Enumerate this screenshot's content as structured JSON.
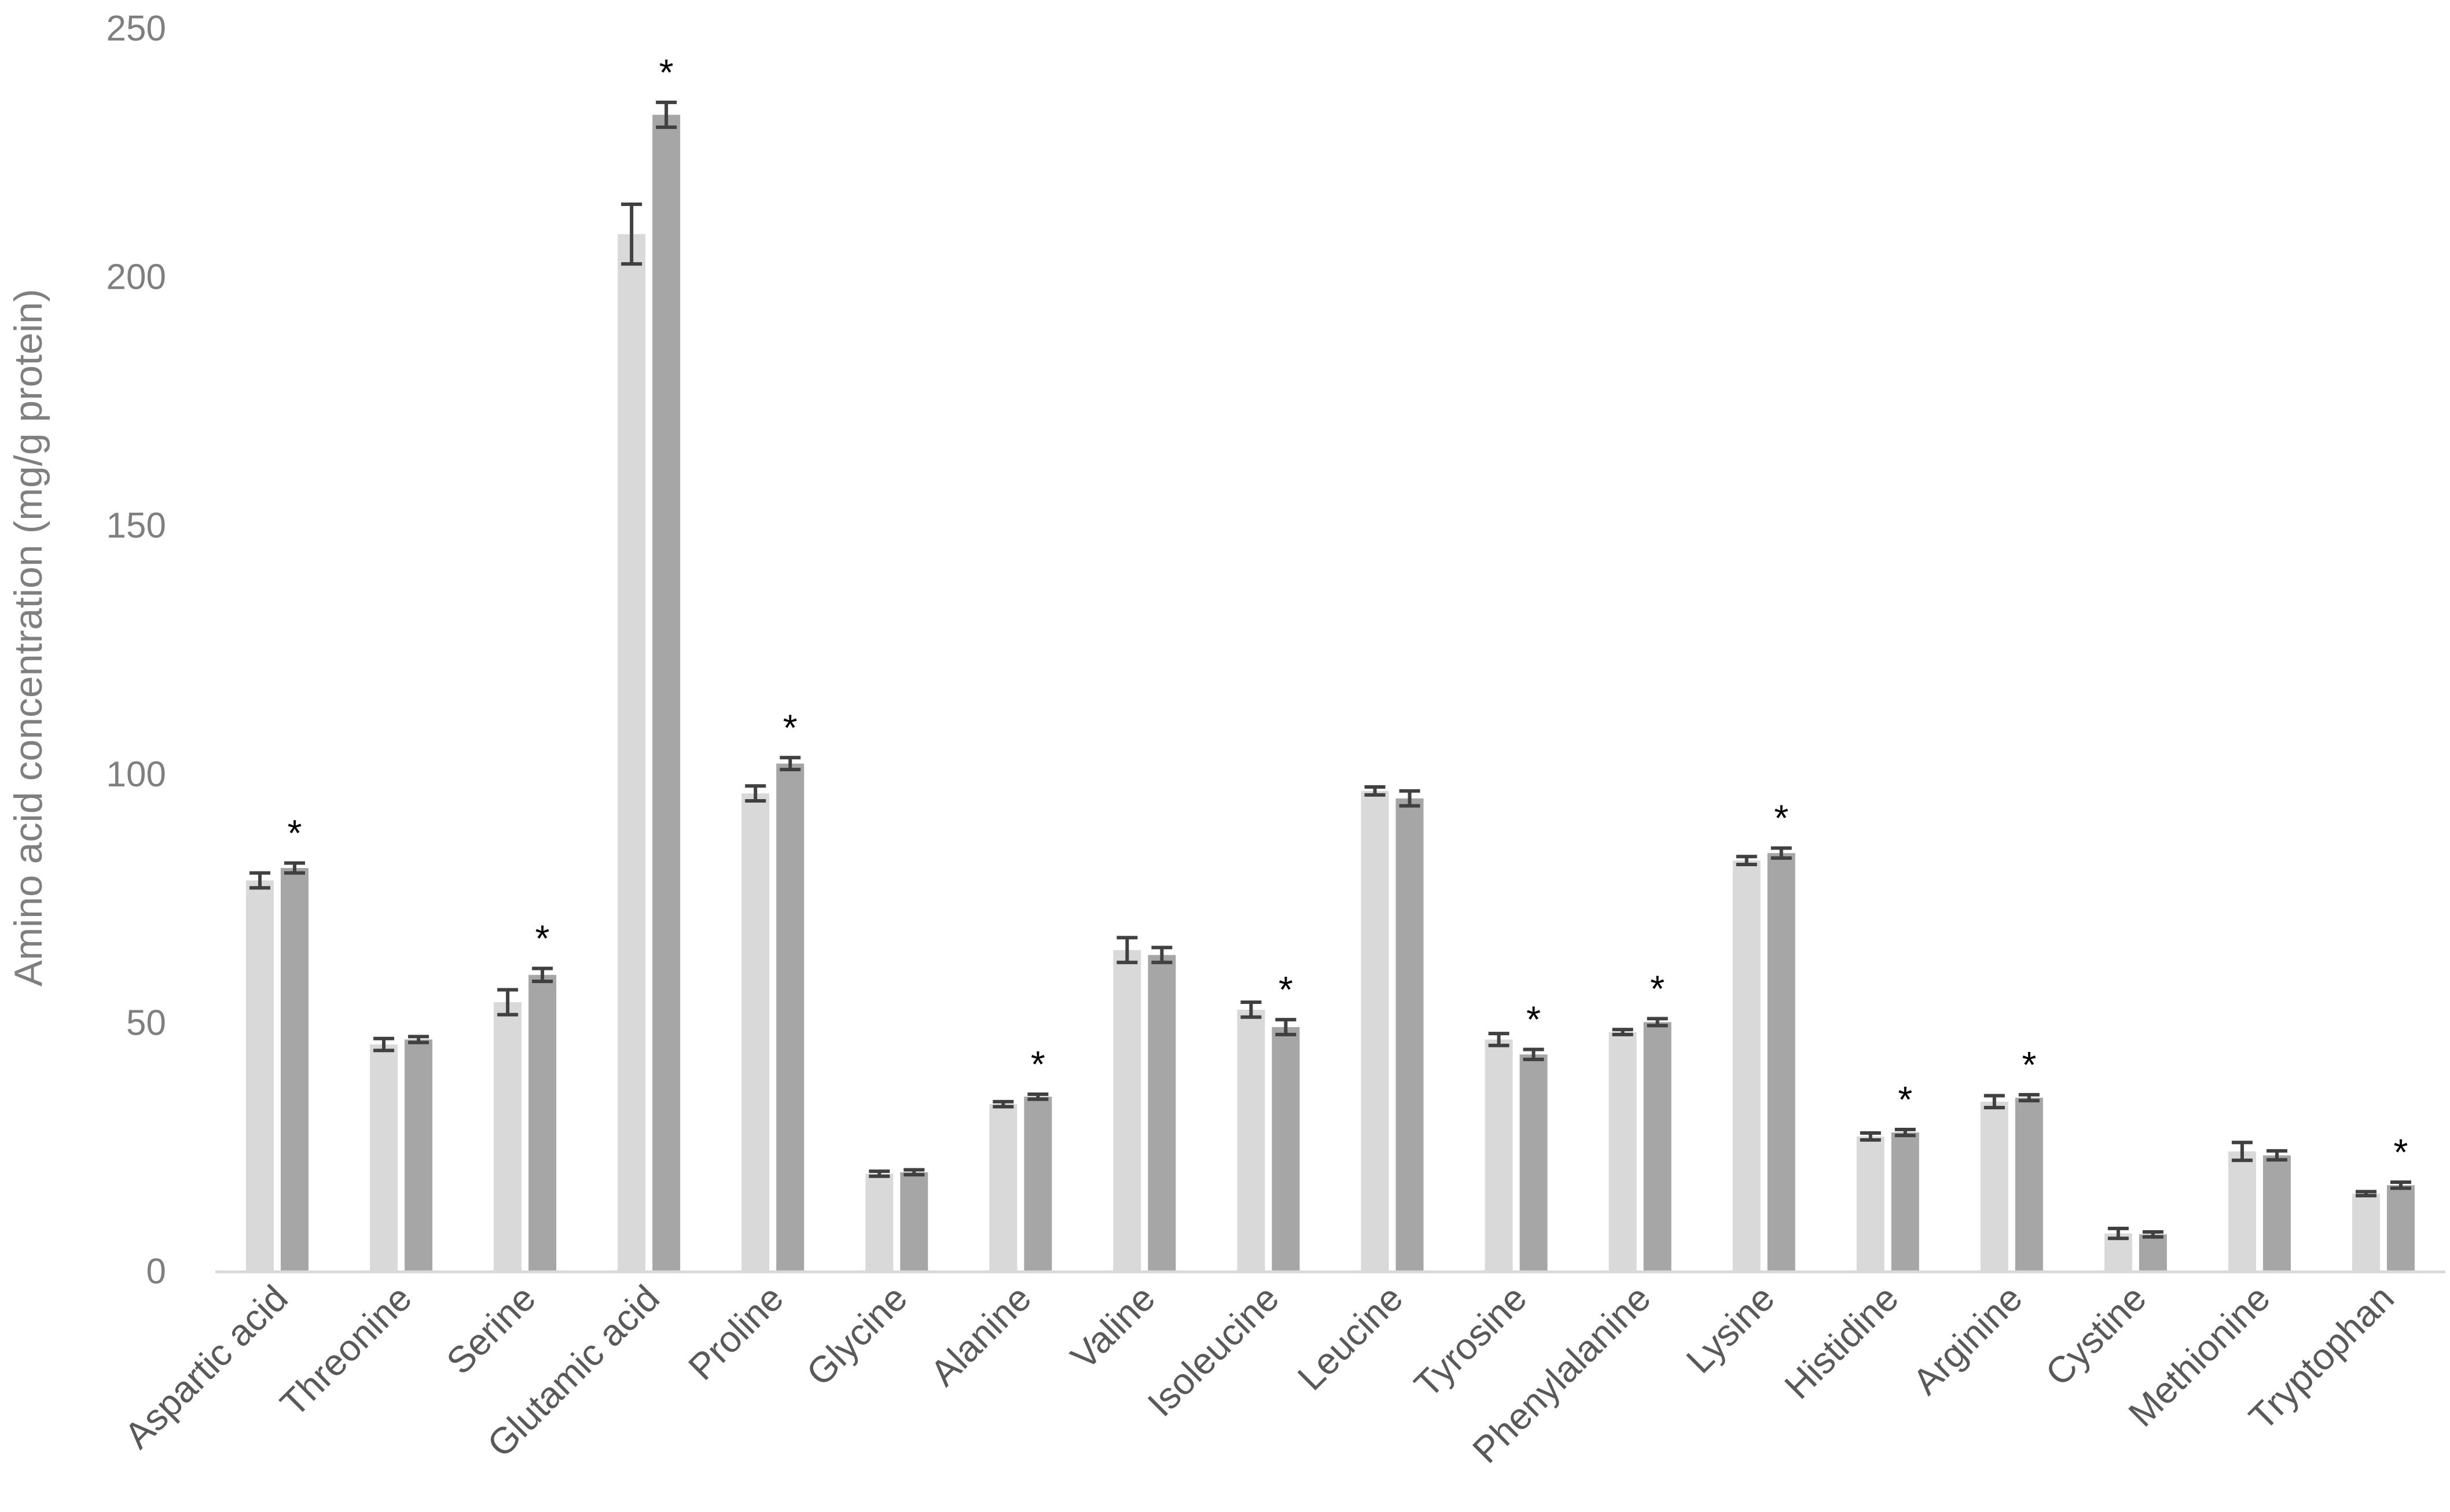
{
  "chart_data": {
    "type": "bar",
    "title": "",
    "xlabel": "",
    "ylabel": "Amino acid concentration (mg/g protein)",
    "ylim": [
      0,
      250
    ],
    "yticks": [
      0,
      50,
      100,
      150,
      200,
      250
    ],
    "grid": false,
    "legend": "none",
    "categories": [
      "Aspartic acid",
      "Threonine",
      "Serine",
      "Glutamic acid",
      "Proline",
      "Glycine",
      "Alanine",
      "Valine",
      "Isoleucine",
      "Leucine",
      "Tyrosine",
      "Phenylalanine",
      "Lysine",
      "Histidine",
      "Arginine",
      "Cystine",
      "Methionine",
      "Tryptophan"
    ],
    "series": [
      {
        "color": "#d9d9d9",
        "values": [
          78.5,
          45.5,
          54.0,
          208.5,
          96.0,
          19.5,
          33.5,
          64.5,
          52.5,
          96.5,
          46.5,
          48.0,
          82.5,
          27.0,
          34.0,
          7.5,
          24.0,
          15.5
        ],
        "errors": [
          1.5,
          1.2,
          2.5,
          6.0,
          1.5,
          0.5,
          0.5,
          2.5,
          1.5,
          0.8,
          1.2,
          0.5,
          0.8,
          0.7,
          1.2,
          1.0,
          1.8,
          0.4
        ]
      },
      {
        "color": "#a6a6a6",
        "values": [
          81.0,
          46.5,
          59.5,
          232.5,
          102.0,
          19.8,
          35.0,
          63.5,
          49.0,
          95.0,
          43.5,
          50.0,
          84.0,
          27.8,
          34.8,
          7.3,
          23.2,
          17.2
        ],
        "errors": [
          1.0,
          0.6,
          1.3,
          2.5,
          1.2,
          0.5,
          0.5,
          1.5,
          1.5,
          1.5,
          1.0,
          0.7,
          1.0,
          0.6,
          0.6,
          0.5,
          0.9,
          0.6
        ]
      }
    ],
    "significance": {
      "marker": "*",
      "categories": [
        "Aspartic acid",
        "Serine",
        "Glutamic acid",
        "Proline",
        "Alanine",
        "Isoleucine",
        "Tyrosine",
        "Phenylalanine",
        "Lysine",
        "Histidine",
        "Arginine",
        "Tryptophan"
      ]
    }
  }
}
